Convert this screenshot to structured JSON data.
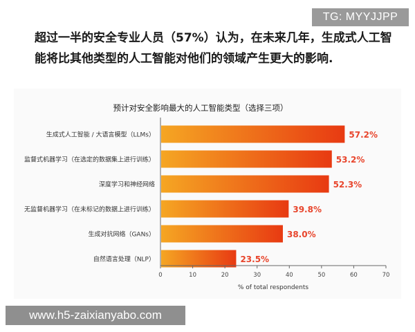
{
  "headline": {
    "line1": "超过一半的安全专业人员（57%）认为，在未来几年，生成式人工智",
    "line2": "能将比其他类型的人工智能对他们的领域产生更大的影响."
  },
  "watermarks": {
    "top": "TG: MYYJJPP",
    "bottom": "www.h5-zaixianyabo.com"
  },
  "chart_data": {
    "type": "bar",
    "orientation": "horizontal",
    "title": "预计对安全影响最大的人工智能类型（选择三项）",
    "xlabel": "% of total respondents",
    "ylabel": "",
    "xlim": [
      0,
      70
    ],
    "xticks": [
      0,
      10,
      20,
      30,
      40,
      50,
      60,
      70
    ],
    "grid": false,
    "categories": [
      "生成式人工智能 / 大语言模型（LLMs）",
      "监督式机器学习（在选定的数据集上进行训练）",
      "深度学习和神经网络",
      "无监督机器学习（在未标记的数据上进行训练）",
      "生成对抗网络（GANs）",
      "自然语言处理（NLP）"
    ],
    "values": [
      57.2,
      53.2,
      52.3,
      39.8,
      38.0,
      23.5
    ],
    "value_labels": [
      "57.2%",
      "53.2%",
      "52.3%",
      "39.8%",
      "38.0%",
      "23.5%"
    ],
    "colors": {
      "bar_start": "#f5a623",
      "bar_end": "#e83a12",
      "value_label": "#e8452c",
      "axis": "#666666"
    }
  }
}
